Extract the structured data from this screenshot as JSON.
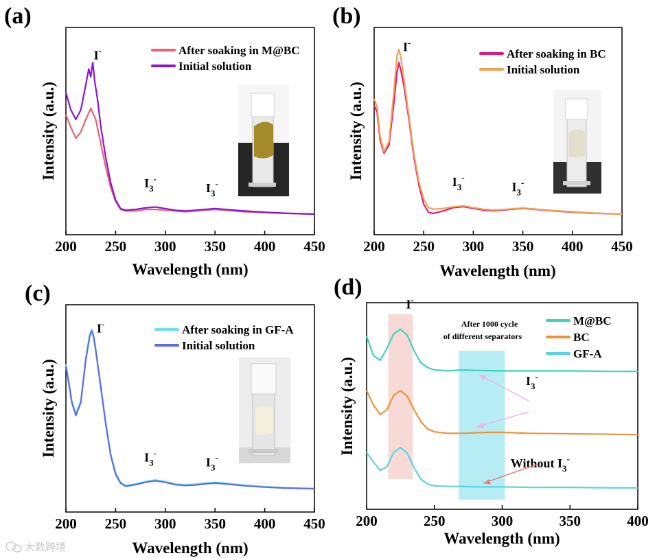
{
  "chart_data": [
    {
      "panel": "(a)",
      "type": "line",
      "xlabel": "Wavelength (nm)",
      "ylabel": "Intensity (a.u.)",
      "xlim": [
        200,
        450
      ],
      "xticks": [
        200,
        250,
        300,
        350,
        400,
        450
      ],
      "series": [
        {
          "name": "After soaking in M@BC",
          "color": "#ec6070",
          "x": [
            200,
            205,
            210,
            215,
            220,
            225,
            230,
            235,
            240,
            245,
            250,
            255,
            260,
            270,
            280,
            290,
            300,
            310,
            320,
            330,
            340,
            350,
            360,
            380,
            400,
            420,
            450
          ],
          "y": [
            0.63,
            0.55,
            0.48,
            0.52,
            0.6,
            0.67,
            0.6,
            0.45,
            0.3,
            0.17,
            0.08,
            0.03,
            0.02,
            0.02,
            0.03,
            0.03,
            0.025,
            0.02,
            0.015,
            0.02,
            0.025,
            0.03,
            0.025,
            0.015,
            0.01,
            0.005,
            0.0
          ]
        },
        {
          "name": "Initial solution",
          "color": "#8a14d8",
          "x": [
            200,
            205,
            210,
            215,
            220,
            223,
            225,
            227,
            229,
            232,
            235,
            240,
            245,
            250,
            255,
            260,
            270,
            280,
            290,
            300,
            310,
            320,
            330,
            340,
            350,
            360,
            380,
            400,
            420,
            450
          ],
          "y": [
            0.77,
            0.66,
            0.6,
            0.66,
            0.82,
            0.92,
            0.87,
            0.96,
            0.84,
            0.72,
            0.56,
            0.36,
            0.2,
            0.09,
            0.035,
            0.025,
            0.03,
            0.04,
            0.045,
            0.035,
            0.025,
            0.02,
            0.025,
            0.03,
            0.035,
            0.03,
            0.02,
            0.012,
            0.006,
            0.0
          ]
        }
      ],
      "annotations": [
        {
          "base": "I",
          "sup": "-",
          "x": 232,
          "y": 0.98
        },
        {
          "base": "I",
          "sub": "3",
          "sup": "-",
          "x": 285,
          "y": 0.17
        },
        {
          "base": "I",
          "sub": "3",
          "sup": "-",
          "x": 347,
          "y": 0.14
        }
      ]
    },
    {
      "panel": "(b)",
      "type": "line",
      "xlabel": "Wavelength (nm)",
      "ylabel": "Intensity (a.u.)",
      "xlim": [
        200,
        450
      ],
      "xticks": [
        200,
        250,
        300,
        350,
        400,
        450
      ],
      "series": [
        {
          "name": "After soaking in BC",
          "color": "#e0197a",
          "x": [
            200,
            203,
            206,
            210,
            215,
            220,
            223,
            225,
            227,
            230,
            235,
            240,
            245,
            250,
            255,
            260,
            270,
            280,
            290,
            300,
            310,
            320,
            330,
            340,
            350,
            360,
            380,
            400,
            420,
            450
          ],
          "y": [
            0.66,
            0.62,
            0.45,
            0.37,
            0.42,
            0.68,
            0.86,
            0.92,
            0.87,
            0.78,
            0.58,
            0.35,
            0.18,
            0.06,
            0.01,
            0.005,
            0.02,
            0.04,
            0.045,
            0.035,
            0.025,
            0.02,
            0.025,
            0.03,
            0.035,
            0.03,
            0.02,
            0.012,
            0.006,
            0.0
          ]
        },
        {
          "name": "Initial solution",
          "color": "#f3a050",
          "x": [
            200,
            203,
            206,
            210,
            215,
            220,
            223,
            225,
            227,
            230,
            235,
            240,
            245,
            250,
            255,
            260,
            270,
            280,
            290,
            300,
            310,
            320,
            330,
            340,
            350,
            360,
            380,
            400,
            420,
            450
          ],
          "y": [
            0.7,
            0.65,
            0.47,
            0.38,
            0.44,
            0.75,
            0.96,
            1.0,
            0.95,
            0.82,
            0.6,
            0.37,
            0.2,
            0.09,
            0.04,
            0.03,
            0.035,
            0.045,
            0.05,
            0.04,
            0.03,
            0.025,
            0.028,
            0.033,
            0.037,
            0.032,
            0.022,
            0.014,
            0.007,
            0.0
          ]
        }
      ],
      "annotations": [
        {
          "base": "I",
          "sup": "-",
          "x": 233,
          "y": 0.99
        },
        {
          "base": "I",
          "sub": "3",
          "sup": "-",
          "x": 285,
          "y": 0.17
        },
        {
          "base": "I",
          "sub": "3",
          "sup": "-",
          "x": 345,
          "y": 0.14
        }
      ]
    },
    {
      "panel": "(c)",
      "type": "line",
      "xlabel": "Wavelength (nm)",
      "ylabel": "Intensity (a.u.)",
      "xlim": [
        200,
        450
      ],
      "xticks": [
        200,
        250,
        300,
        350,
        400,
        450
      ],
      "series": [
        {
          "name": "After soaking in GF-A",
          "color": "#6fe0ec",
          "x": [
            200,
            203,
            206,
            210,
            215,
            220,
            224,
            226,
            228,
            230,
            235,
            240,
            245,
            250,
            255,
            260,
            270,
            280,
            290,
            300,
            310,
            320,
            330,
            340,
            350,
            360,
            380,
            400,
            420,
            450
          ],
          "y": [
            0.78,
            0.67,
            0.55,
            0.47,
            0.55,
            0.82,
            0.97,
            1.0,
            0.96,
            0.88,
            0.65,
            0.42,
            0.22,
            0.1,
            0.04,
            0.02,
            0.03,
            0.045,
            0.055,
            0.045,
            0.03,
            0.025,
            0.028,
            0.035,
            0.04,
            0.035,
            0.022,
            0.013,
            0.006,
            0.0
          ]
        },
        {
          "name": "Initial solution",
          "color": "#5b6ee6",
          "x": [
            200,
            203,
            206,
            210,
            215,
            220,
            224,
            226,
            228,
            230,
            235,
            240,
            245,
            250,
            255,
            260,
            270,
            280,
            290,
            300,
            310,
            320,
            330,
            340,
            350,
            360,
            380,
            400,
            420,
            450
          ],
          "y": [
            0.77,
            0.66,
            0.54,
            0.46,
            0.54,
            0.81,
            0.96,
            0.99,
            0.95,
            0.87,
            0.64,
            0.41,
            0.21,
            0.09,
            0.035,
            0.015,
            0.025,
            0.04,
            0.05,
            0.04,
            0.025,
            0.02,
            0.023,
            0.03,
            0.035,
            0.03,
            0.018,
            0.01,
            0.004,
            0.0
          ]
        }
      ],
      "annotations": [
        {
          "base": "I",
          "sup": "-",
          "x": 235,
          "y": 0.98
        },
        {
          "base": "I",
          "sub": "3",
          "sup": "-",
          "x": 285,
          "y": 0.17
        },
        {
          "base": "I",
          "sub": "3",
          "sup": "-",
          "x": 347,
          "y": 0.14
        }
      ]
    },
    {
      "panel": "(d)",
      "type": "line",
      "xlabel": "Wavelength (nm)",
      "ylabel": "Intensity (a.u.)",
      "xlim": [
        200,
        400
      ],
      "xticks": [
        200,
        250,
        300,
        350,
        400
      ],
      "title": "After 1000 cycle of different separators",
      "series": [
        {
          "name": "M@BC",
          "color": "#3fd2c0",
          "x": [
            200,
            205,
            210,
            215,
            220,
            225,
            230,
            235,
            240,
            245,
            250,
            260,
            270,
            280,
            300,
            320,
            350,
            380,
            400
          ],
          "y": [
            0.07,
            0.03,
            0.02,
            0.045,
            0.075,
            0.085,
            0.072,
            0.04,
            0.015,
            0.005,
            0.0,
            -0.002,
            0.0,
            -0.001,
            -0.002,
            -0.002,
            -0.002,
            -0.003,
            -0.003
          ]
        },
        {
          "name": "BC",
          "color": "#f0913a",
          "x": [
            200,
            205,
            210,
            215,
            220,
            225,
            230,
            235,
            240,
            245,
            250,
            260,
            270,
            280,
            290,
            300,
            310,
            320,
            350,
            380,
            400
          ],
          "y": [
            0.09,
            0.06,
            0.04,
            0.05,
            0.08,
            0.09,
            0.078,
            0.05,
            0.025,
            0.01,
            0.004,
            0.001,
            0.001,
            0.002,
            0.003,
            0.003,
            0.002,
            0.001,
            0.0,
            -0.001,
            -0.002
          ]
        },
        {
          "name": "GF-A",
          "color": "#5ad2e6",
          "x": [
            200,
            205,
            210,
            215,
            220,
            225,
            230,
            235,
            240,
            245,
            250,
            260,
            270,
            280,
            300,
            320,
            350,
            380,
            400
          ],
          "y": [
            0.07,
            0.05,
            0.032,
            0.04,
            0.07,
            0.08,
            0.068,
            0.038,
            0.014,
            0.004,
            0.0,
            -0.001,
            -0.001,
            -0.002,
            -0.002,
            -0.003,
            -0.003,
            -0.004,
            -0.004
          ]
        }
      ],
      "highlights": [
        {
          "label": "I-",
          "from": 216,
          "to": 234,
          "color": "#f7d9d6"
        },
        {
          "label": "I3-",
          "from": 268,
          "to": 302,
          "color": "#b6ecf3"
        }
      ],
      "annotations": [
        {
          "base": "I",
          "sup": "-",
          "x": 232,
          "y": 1.02
        },
        {
          "base": "I",
          "sub": "3",
          "sup": "-",
          "x": 322,
          "y": 0.63
        },
        {
          "base": "Without I",
          "sub": "3",
          "sup": "-",
          "x": 328,
          "y": 0.21
        }
      ]
    }
  ],
  "watermark": "大数跨境",
  "watermark_icon": "wechat-bubble-icon"
}
